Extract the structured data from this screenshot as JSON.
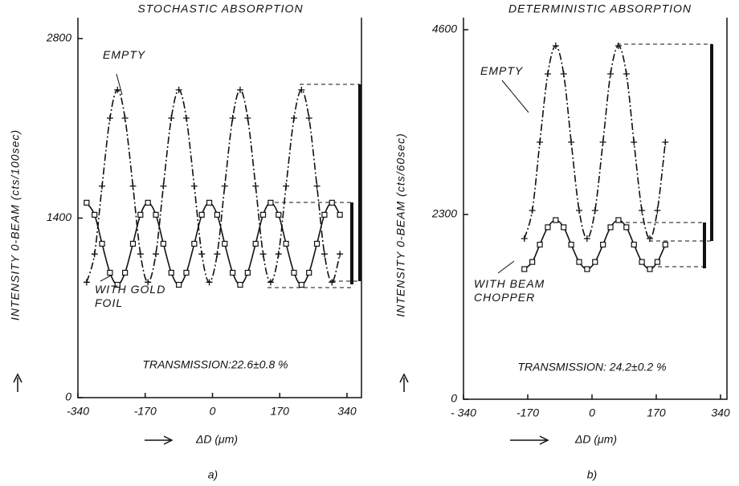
{
  "chart_data": [
    {
      "type": "line",
      "title": "STOCHASTIC ABSORPTION",
      "y_label": "INTENSITY 0-BEAM (cts/100sec)",
      "x_label": "ΔD (μm)",
      "panel": "a)",
      "annotation": "TRANSMISSION:22.6±0.8 %",
      "x": [
        -318,
        -298,
        -279,
        -259,
        -240,
        -221,
        -201,
        -182,
        -163,
        -143,
        -124,
        -104,
        -85,
        -66,
        -46,
        -27,
        -8,
        12,
        31,
        51,
        70,
        89,
        109,
        128,
        147,
        167,
        186,
        206,
        225,
        244,
        264,
        283,
        302,
        322
      ],
      "series": [
        {
          "name": "EMPTY",
          "color": "#111111",
          "style": "dashed",
          "marker": "plus",
          "values": [
            900,
            1120,
            1650,
            2180,
            2400,
            2180,
            1650,
            1120,
            900,
            1120,
            1650,
            2180,
            2400,
            2180,
            1650,
            1120,
            900,
            1120,
            1650,
            2180,
            2400,
            2180,
            1650,
            1120,
            900,
            1120,
            1650,
            2180,
            2400,
            2180,
            1650,
            1120,
            900,
            1120
          ]
        },
        {
          "name": "WITH GOLD FOIL",
          "color": "#111111",
          "style": "solid",
          "marker": "square",
          "values": [
            1520,
            1426,
            1200,
            974,
            880,
            974,
            1200,
            1426,
            1520,
            1426,
            1200,
            974,
            880,
            974,
            1200,
            1426,
            1520,
            1426,
            1200,
            974,
            880,
            974,
            1200,
            1426,
            1520,
            1426,
            1200,
            974,
            880,
            974,
            1200,
            1426,
            1520,
            1426
          ]
        }
      ],
      "xlim": [
        -340,
        340
      ],
      "xticks": [
        -340,
        -170,
        0,
        170,
        340
      ],
      "ylim": [
        0,
        2800
      ],
      "yticks": [
        0,
        1400,
        2800
      ]
    },
    {
      "type": "line",
      "title": "DETERMINISTIC ABSORPTION",
      "y_label": "INTENSITY 0-BEAM (cts/60sec)",
      "x_label": "ΔD (μm)",
      "panel": "b)",
      "annotation": "TRANSMISSION: 24.2±0.2 %",
      "x": [
        -179,
        -158,
        -138,
        -117,
        -96,
        -75,
        -55,
        -34,
        -13,
        8,
        29,
        49,
        70,
        91,
        111,
        132,
        153,
        173,
        194
      ],
      "series": [
        {
          "name": "EMPTY",
          "color": "#111111",
          "style": "dashed",
          "marker": "plus",
          "values": [
            2000,
            2350,
            3200,
            4050,
            4400,
            4050,
            3200,
            2350,
            2000,
            2350,
            3200,
            4050,
            4400,
            4050,
            3200,
            2350,
            2000,
            2350,
            3200
          ]
        },
        {
          "name": "WITH BEAM CHOPPER",
          "color": "#111111",
          "style": "solid",
          "marker": "square",
          "values": [
            1620,
            1709,
            1925,
            2141,
            2230,
            2141,
            1925,
            1709,
            1620,
            1709,
            1925,
            2141,
            2230,
            2141,
            1925,
            1709,
            1620,
            1709,
            1925
          ]
        }
      ],
      "xlim": [
        -340,
        340
      ],
      "xticks": [
        {
          "value": -340,
          "label": "- 340"
        },
        -170,
        0,
        170,
        340
      ],
      "ylim": [
        0,
        4600
      ],
      "yticks": [
        0,
        2300,
        4600
      ]
    }
  ]
}
